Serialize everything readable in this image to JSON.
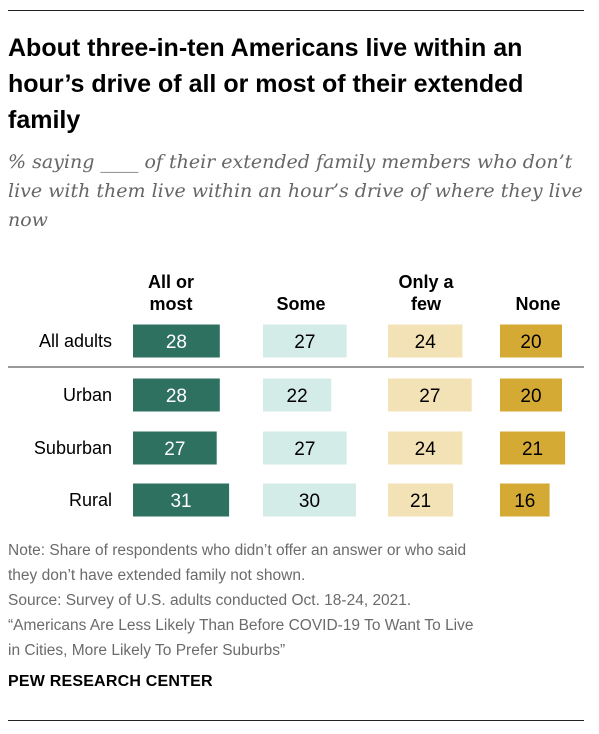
{
  "title": "About three-in-ten Americans live within an hour’s drive of all or most of their extended family",
  "subtitle": "% saying ____ of their extended family members who don’t live with them live within an hour’s drive of where they live now",
  "chart_data": {
    "type": "bar",
    "layout": "small-multiple horizontal bars",
    "categories": [
      "All adults",
      "Urban",
      "Suburban",
      "Rural"
    ],
    "series": [
      {
        "name": "All or most",
        "header_lines": [
          "All or",
          "most"
        ],
        "color": "#2e7160",
        "label_color": "#ffffff",
        "values": [
          28,
          28,
          27,
          31
        ]
      },
      {
        "name": "Some",
        "header_lines": [
          "Some"
        ],
        "color": "#d3ece7",
        "label_color": "#000000",
        "values": [
          27,
          22,
          27,
          30
        ]
      },
      {
        "name": "Only a few",
        "header_lines": [
          "Only a",
          "few"
        ],
        "color": "#f2e2b5",
        "label_color": "#000000",
        "values": [
          24,
          27,
          24,
          21
        ]
      },
      {
        "name": "None",
        "header_lines": [
          "None"
        ],
        "color": "#d4aa35",
        "label_color": "#000000",
        "values": [
          20,
          20,
          21,
          16
        ]
      }
    ],
    "separator_after_row": 0
  },
  "notes": {
    "note_lines": [
      "Note: Share of respondents who didn’t offer an answer or who said",
      "they don’t have extended family not shown."
    ],
    "source_lines": [
      "Source: Survey of U.S. adults conducted Oct. 18-24, 2021.",
      "“Americans Are Less Likely Than Before COVID-19 To Want To Live",
      "in Cities, More Likely To Prefer Suburbs”"
    ]
  },
  "brand": "PEW RESEARCH CENTER"
}
